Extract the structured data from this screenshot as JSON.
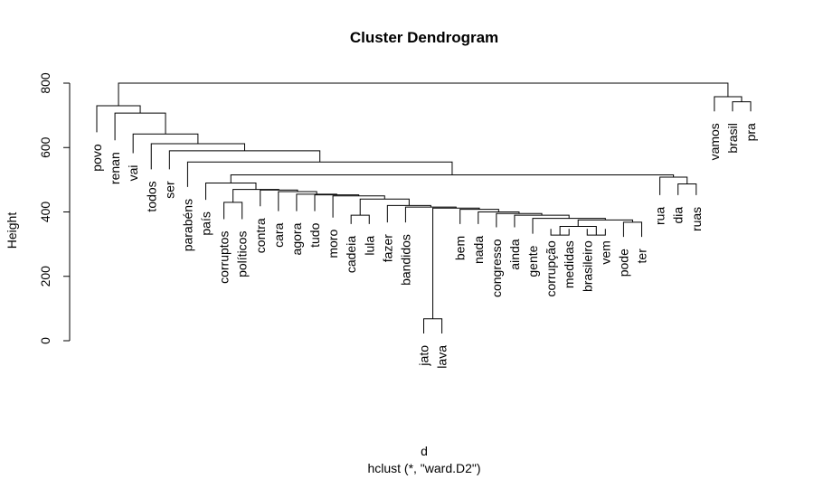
{
  "chart_data": {
    "type": "dendrogram",
    "title": "Cluster Dendrogram",
    "xlabel": "d",
    "sublabel": "hclust (*, \"ward.D2\")",
    "ylabel": "Height",
    "yticks": [
      0,
      200,
      400,
      600,
      800
    ],
    "ylim": [
      0,
      810
    ],
    "leaves": [
      {
        "label": "povo",
        "height": 625
      },
      {
        "label": "renan",
        "height": 600
      },
      {
        "label": "vai",
        "height": 560
      },
      {
        "label": "todos",
        "height": 510
      },
      {
        "label": "ser",
        "height": 510
      },
      {
        "label": "parabéns",
        "height": 455
      },
      {
        "label": "país",
        "height": 415
      },
      {
        "label": "corruptos",
        "height": 355
      },
      {
        "label": "políticos",
        "height": 355
      },
      {
        "label": "contra",
        "height": 395
      },
      {
        "label": "cara",
        "height": 380
      },
      {
        "label": "agora",
        "height": 380
      },
      {
        "label": "tudo",
        "height": 380
      },
      {
        "label": "moro",
        "height": 360
      },
      {
        "label": "cadeia",
        "height": 340
      },
      {
        "label": "lula",
        "height": 340
      },
      {
        "label": "fazer",
        "height": 345
      },
      {
        "label": "bandidos",
        "height": 345
      },
      {
        "label": "jato",
        "height": 0
      },
      {
        "label": "lava",
        "height": 0
      },
      {
        "label": "bem",
        "height": 340
      },
      {
        "label": "nada",
        "height": 340
      },
      {
        "label": "congresso",
        "height": 330
      },
      {
        "label": "ainda",
        "height": 330
      },
      {
        "label": "gente",
        "height": 310
      },
      {
        "label": "corrupção",
        "height": 325
      },
      {
        "label": "medidas",
        "height": 325
      },
      {
        "label": "brasileiro",
        "height": 325
      },
      {
        "label": "vem",
        "height": 325
      },
      {
        "label": "pode",
        "height": 300
      },
      {
        "label": "ter",
        "height": 300
      },
      {
        "label": "rua",
        "height": 430
      },
      {
        "label": "dia",
        "height": 430
      },
      {
        "label": "ruas",
        "height": 430
      },
      {
        "label": "vamos",
        "height": 690
      },
      {
        "label": "brasil",
        "height": 690
      },
      {
        "label": "pra",
        "height": 690
      }
    ],
    "merges": [
      {
        "left": "L:jato",
        "right": "L:lava",
        "height": 68
      },
      {
        "left": "L:corrupção",
        "right": "L:medidas",
        "height": 328
      },
      {
        "left": "L:brasileiro",
        "right": "L:vem",
        "height": 328
      },
      {
        "left": "M2",
        "right": "M3",
        "height": 355
      },
      {
        "left": "L:pode",
        "right": "L:ter",
        "height": 368
      },
      {
        "left": "M4",
        "right": "M5",
        "height": 375
      },
      {
        "left": "L:gente",
        "right": "M6",
        "height": 380
      },
      {
        "left": "L:ainda",
        "right": "M7",
        "height": 390
      },
      {
        "left": "L:congresso",
        "right": "M8",
        "height": 395
      },
      {
        "left": "L:nada",
        "right": "M9",
        "height": 400
      },
      {
        "left": "L:bem",
        "right": "M10",
        "height": 408
      },
      {
        "left": "M1",
        "right": "M11",
        "height": 412
      },
      {
        "left": "L:bandidos",
        "right": "M12",
        "height": 415
      },
      {
        "left": "L:fazer",
        "right": "M13",
        "height": 420
      },
      {
        "left": "L:cadeia",
        "right": "L:lula",
        "height": 390
      },
      {
        "left": "M15",
        "right": "M14",
        "height": 440
      },
      {
        "left": "L:moro",
        "right": "M16",
        "height": 450
      },
      {
        "left": "L:tudo",
        "right": "M17",
        "height": 453
      },
      {
        "left": "L:agora",
        "right": "M18",
        "height": 455
      },
      {
        "left": "L:cara",
        "right": "M19",
        "height": 463
      },
      {
        "left": "L:contra",
        "right": "M20",
        "height": 468
      },
      {
        "left": "L:corruptos",
        "right": "L:políticos",
        "height": 430
      },
      {
        "left": "M22",
        "right": "M21",
        "height": 470
      },
      {
        "left": "L:país",
        "right": "M23",
        "height": 490
      },
      {
        "left": "L:dia",
        "right": "L:ruas",
        "height": 487
      },
      {
        "left": "L:rua",
        "right": "M25",
        "height": 508
      },
      {
        "left": "M24",
        "right": "M26",
        "height": 515
      },
      {
        "left": "L:parabéns",
        "right": "M27",
        "height": 555
      },
      {
        "left": "L:ser",
        "right": "M28",
        "height": 590
      },
      {
        "left": "L:todos",
        "right": "M29",
        "height": 612
      },
      {
        "left": "L:vai",
        "right": "M30",
        "height": 642
      },
      {
        "left": "L:renan",
        "right": "M31",
        "height": 707
      },
      {
        "left": "L:povo",
        "right": "M32",
        "height": 730
      },
      {
        "left": "L:brasil",
        "right": "L:pra",
        "height": 742
      },
      {
        "left": "L:vamos",
        "right": "M34",
        "height": 758
      },
      {
        "left": "M33",
        "right": "M35",
        "height": 800
      }
    ]
  }
}
